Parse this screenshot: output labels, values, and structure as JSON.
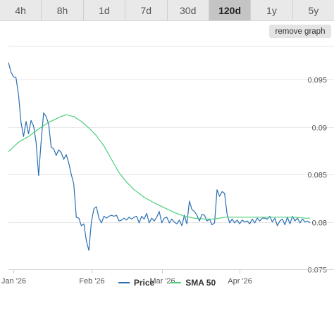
{
  "tabs": [
    {
      "label": "4h",
      "active": false
    },
    {
      "label": "8h",
      "active": false
    },
    {
      "label": "1d",
      "active": false
    },
    {
      "label": "7d",
      "active": false
    },
    {
      "label": "30d",
      "active": false
    },
    {
      "label": "120d",
      "active": true
    },
    {
      "label": "1y",
      "active": false
    },
    {
      "label": "5y",
      "active": false
    }
  ],
  "remove_graph_label": "remove graph",
  "colors": {
    "price": "#2a6fb3",
    "sma": "#4ccf7a",
    "grid": "#e6e6e6",
    "axis_text": "#555555"
  },
  "chart_data": {
    "type": "line",
    "xlabels": [
      {
        "label": "Jan '26",
        "day": 0
      },
      {
        "label": "Feb '26",
        "day": 31
      },
      {
        "label": "Mar '26",
        "day": 59
      },
      {
        "label": "Apr '26",
        "day": 90
      }
    ],
    "xrange": [
      -2,
      118
    ],
    "ylim": [
      0.075,
      0.0985
    ],
    "yticks": [
      0.075,
      0.08,
      0.085,
      0.09,
      0.095
    ],
    "ytick_labels": [
      "0.075",
      "0.08",
      "0.085",
      "0.09",
      "0.095"
    ],
    "series": [
      {
        "name": "Price",
        "points": [
          [
            -2,
            0.0968
          ],
          [
            -1,
            0.0958
          ],
          [
            0,
            0.0953
          ],
          [
            1,
            0.0952
          ],
          [
            2,
            0.0934
          ],
          [
            3,
            0.0905
          ],
          [
            4,
            0.089
          ],
          [
            5,
            0.0906
          ],
          [
            6,
            0.0893
          ],
          [
            7,
            0.0907
          ],
          [
            8,
            0.0901
          ],
          [
            9,
            0.0884
          ],
          [
            10,
            0.0849
          ],
          [
            11,
            0.0885
          ],
          [
            12,
            0.0915
          ],
          [
            13,
            0.0911
          ],
          [
            14,
            0.0903
          ],
          [
            15,
            0.0879
          ],
          [
            16,
            0.0877
          ],
          [
            17,
            0.087
          ],
          [
            18,
            0.0876
          ],
          [
            19,
            0.0873
          ],
          [
            20,
            0.0866
          ],
          [
            21,
            0.0871
          ],
          [
            22,
            0.0862
          ],
          [
            23,
            0.085
          ],
          [
            24,
            0.084
          ],
          [
            25,
            0.0805
          ],
          [
            26,
            0.0804
          ],
          [
            27,
            0.0796
          ],
          [
            28,
            0.0798
          ],
          [
            29,
            0.078
          ],
          [
            30,
            0.077
          ],
          [
            31,
            0.08
          ],
          [
            32,
            0.0814
          ],
          [
            33,
            0.0816
          ],
          [
            34,
            0.0804
          ],
          [
            35,
            0.0799
          ],
          [
            36,
            0.0806
          ],
          [
            37,
            0.0804
          ],
          [
            38,
            0.0806
          ],
          [
            39,
            0.0807
          ],
          [
            40,
            0.0806
          ],
          [
            41,
            0.0807
          ],
          [
            42,
            0.0801
          ],
          [
            43,
            0.0802
          ],
          [
            44,
            0.0804
          ],
          [
            45,
            0.0802
          ],
          [
            46,
            0.0805
          ],
          [
            47,
            0.0803
          ],
          [
            48,
            0.0805
          ],
          [
            49,
            0.0806
          ],
          [
            50,
            0.0799
          ],
          [
            51,
            0.0806
          ],
          [
            52,
            0.0803
          ],
          [
            53,
            0.0809
          ],
          [
            54,
            0.0799
          ],
          [
            55,
            0.0804
          ],
          [
            56,
            0.0801
          ],
          [
            57,
            0.0805
          ],
          [
            58,
            0.0811
          ],
          [
            59,
            0.0799
          ],
          [
            60,
            0.0804
          ],
          [
            61,
            0.0805
          ],
          [
            62,
            0.0799
          ],
          [
            63,
            0.0803
          ],
          [
            64,
            0.08
          ],
          [
            65,
            0.0798
          ],
          [
            66,
            0.0802
          ],
          [
            67,
            0.0796
          ],
          [
            68,
            0.0807
          ],
          [
            69,
            0.0798
          ],
          [
            70,
            0.0822
          ],
          [
            71,
            0.0813
          ],
          [
            72,
            0.0811
          ],
          [
            73,
            0.0807
          ],
          [
            74,
            0.0801
          ],
          [
            75,
            0.0808
          ],
          [
            76,
            0.0807
          ],
          [
            77,
            0.0801
          ],
          [
            78,
            0.0803
          ],
          [
            79,
            0.0797
          ],
          [
            80,
            0.0799
          ],
          [
            81,
            0.0834
          ],
          [
            82,
            0.0827
          ],
          [
            83,
            0.0832
          ],
          [
            84,
            0.083
          ],
          [
            85,
            0.0808
          ],
          [
            86,
            0.0799
          ],
          [
            87,
            0.0803
          ],
          [
            88,
            0.0799
          ],
          [
            89,
            0.0802
          ],
          [
            90,
            0.0798
          ],
          [
            91,
            0.0802
          ],
          [
            92,
            0.08
          ],
          [
            93,
            0.0801
          ],
          [
            94,
            0.0798
          ],
          [
            95,
            0.0803
          ],
          [
            96,
            0.0799
          ],
          [
            97,
            0.0804
          ],
          [
            98,
            0.0801
          ],
          [
            99,
            0.0804
          ],
          [
            100,
            0.0804
          ],
          [
            101,
            0.0803
          ],
          [
            102,
            0.0806
          ],
          [
            103,
            0.08
          ],
          [
            104,
            0.0804
          ],
          [
            105,
            0.0796
          ],
          [
            106,
            0.0801
          ],
          [
            107,
            0.0803
          ],
          [
            108,
            0.0797
          ],
          [
            109,
            0.0805
          ],
          [
            110,
            0.0798
          ],
          [
            111,
            0.0806
          ],
          [
            112,
            0.0801
          ],
          [
            113,
            0.0804
          ],
          [
            114,
            0.0799
          ],
          [
            115,
            0.0803
          ],
          [
            116,
            0.08
          ],
          [
            117,
            0.0801
          ],
          [
            118,
            0.0799
          ]
        ]
      },
      {
        "name": "SMA 50",
        "points": [
          [
            -2,
            0.0874
          ],
          [
            2,
            0.0884
          ],
          [
            6,
            0.089
          ],
          [
            10,
            0.0898
          ],
          [
            14,
            0.0905
          ],
          [
            18,
            0.091
          ],
          [
            21,
            0.0913
          ],
          [
            24,
            0.0911
          ],
          [
            27,
            0.0906
          ],
          [
            30,
            0.0899
          ],
          [
            33,
            0.0891
          ],
          [
            36,
            0.088
          ],
          [
            39,
            0.0866
          ],
          [
            42,
            0.0852
          ],
          [
            45,
            0.0842
          ],
          [
            48,
            0.0834
          ],
          [
            52,
            0.0826
          ],
          [
            56,
            0.082
          ],
          [
            60,
            0.0815
          ],
          [
            64,
            0.081
          ],
          [
            68,
            0.0806
          ],
          [
            72,
            0.0804
          ],
          [
            76,
            0.0803
          ],
          [
            80,
            0.0803
          ],
          [
            84,
            0.0805
          ],
          [
            88,
            0.0805
          ],
          [
            92,
            0.0805
          ],
          [
            96,
            0.0805
          ],
          [
            100,
            0.0805
          ],
          [
            104,
            0.0805
          ],
          [
            108,
            0.0805
          ],
          [
            112,
            0.0805
          ],
          [
            116,
            0.0804
          ],
          [
            118,
            0.0804
          ]
        ]
      }
    ],
    "legend": [
      {
        "label": "Price"
      },
      {
        "label": "SMA 50"
      }
    ],
    "grid": true,
    "legend_position": "bottom-center"
  }
}
